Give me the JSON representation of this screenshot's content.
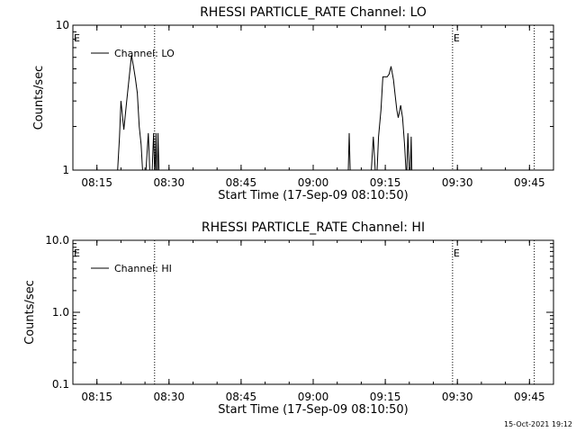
{
  "footer": {
    "timestamp": "15-Oct-2021 19:12"
  },
  "chart_data": [
    {
      "type": "line",
      "title": "RHESSI PARTICLE_RATE Channel: LO",
      "xlabel": "Start Time (17-Sep-09 08:10:50)",
      "ylabel": "Counts/sec",
      "yscale": "log",
      "ylim": [
        1,
        10
      ],
      "ytick_values": [
        1,
        10
      ],
      "ytick_labels": [
        "1",
        "10"
      ],
      "xlim": [
        "08:10",
        "09:50"
      ],
      "xticks": [
        "08:15",
        "08:30",
        "08:45",
        "09:00",
        "09:15",
        "09:30",
        "09:45"
      ],
      "legend": {
        "position": "top-left",
        "entries": [
          "Channel: LO"
        ]
      },
      "markers": [
        {
          "time": "08:10",
          "label": "E",
          "line": false
        },
        {
          "time": "08:27",
          "label": "",
          "line": true
        },
        {
          "time": "09:29",
          "label": "E",
          "line": true
        },
        {
          "time": "09:46",
          "label": "",
          "line": true
        }
      ],
      "series": [
        {
          "name": "Channel: LO",
          "x": [
            "08:19.3",
            "08:19.7",
            "08:20.0",
            "08:20.6",
            "08:21.2",
            "08:21.6",
            "08:22.2",
            "08:22.6",
            "08:23.0",
            "08:23.4",
            "08:23.8",
            "08:24.2",
            "08:24.5",
            "08:25.2",
            "08:25.7",
            "08:26.0",
            "08:26.5",
            "08:26.8",
            "08:27.0",
            "08:27.1",
            "08:27.3",
            "08:27.4",
            "08:27.6",
            "08:27.7",
            "08:27.9",
            "09:07.3",
            "09:07.5",
            "09:07.7",
            "09:12.1",
            "09:12.5",
            "09:12.9",
            "09:13.3",
            "09:13.6",
            "09:14.1",
            "09:14.5",
            "09:15.4",
            "09:15.8",
            "09:16.2",
            "09:16.7",
            "09:17.0",
            "09:17.4",
            "09:17.7",
            "09:18.2",
            "09:18.6",
            "09:19.0",
            "09:19.3",
            "09:19.5",
            "09:19.7",
            "09:20.0",
            "09:20.2",
            "09:20.4",
            "09:20.5"
          ],
          "y": [
            1,
            1.7,
            3.0,
            1.9,
            3.0,
            4.0,
            6.2,
            5.2,
            4.3,
            3.4,
            2.0,
            1.5,
            1.0,
            1.0,
            1.8,
            1.0,
            1.0,
            1.8,
            1.0,
            1.0,
            1.8,
            1.0,
            1.0,
            1.8,
            1.0,
            1.0,
            1.8,
            1.0,
            1.0,
            1.7,
            1.0,
            1.0,
            1.7,
            2.6,
            4.4,
            4.4,
            4.6,
            5.2,
            4.2,
            3.4,
            2.6,
            2.3,
            2.8,
            2.3,
            1.5,
            1.0,
            1.0,
            1.8,
            1.0,
            1.0,
            1.7,
            1.0
          ]
        }
      ]
    },
    {
      "type": "line",
      "title": "RHESSI PARTICLE_RATE Channel: HI",
      "xlabel": "Start Time (17-Sep-09 08:10:50)",
      "ylabel": "Counts/sec",
      "yscale": "log",
      "ylim": [
        0.1,
        10
      ],
      "ytick_values": [
        0.1,
        1,
        10
      ],
      "ytick_labels": [
        "0.1",
        "1.0",
        "10.0"
      ],
      "xlim": [
        "08:10",
        "09:50"
      ],
      "xticks": [
        "08:15",
        "08:30",
        "08:45",
        "09:00",
        "09:15",
        "09:30",
        "09:45"
      ],
      "legend": {
        "position": "top-left",
        "entries": [
          "Channel: HI"
        ]
      },
      "markers": [
        {
          "time": "08:10",
          "label": "E",
          "line": false
        },
        {
          "time": "08:27",
          "label": "",
          "line": true
        },
        {
          "time": "09:29",
          "label": "E",
          "line": true
        },
        {
          "time": "09:46",
          "label": "",
          "line": true
        }
      ],
      "series": [
        {
          "name": "Channel: HI",
          "x": [],
          "y": []
        }
      ]
    }
  ]
}
